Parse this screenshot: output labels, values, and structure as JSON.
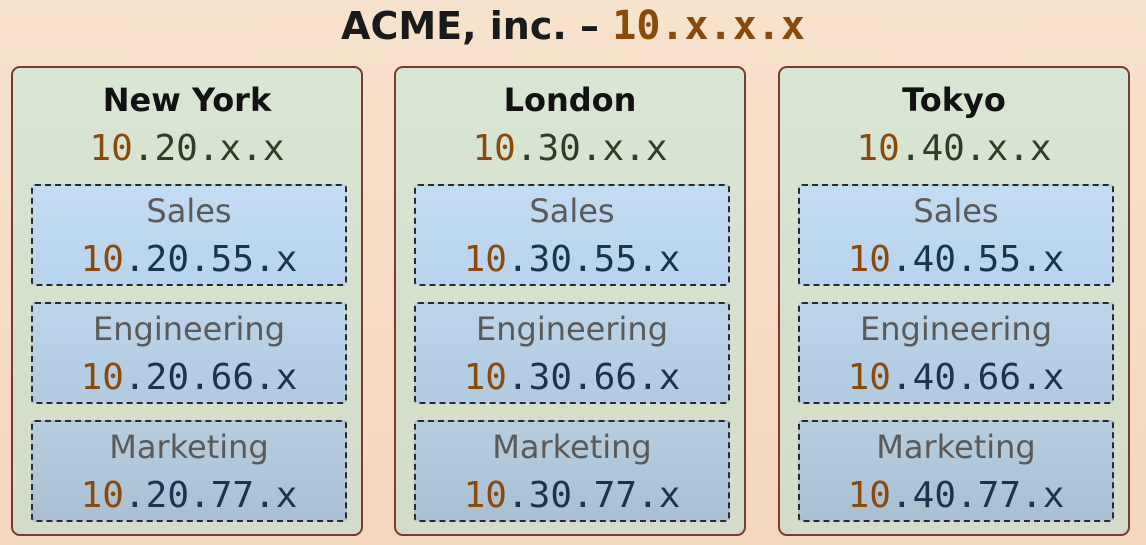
{
  "title": {
    "org": "ACME, inc. –",
    "address": "10.x.x.x"
  },
  "colors": {
    "prefix": "#8a4a0c",
    "region_border": "#7a3b2e",
    "region_fill": "#d9e6d4",
    "dept_fill": "#c3dcf2",
    "region_net_text": "#2f3d24",
    "dept_net_text": "#1c3350"
  },
  "regions": [
    {
      "name": "New York",
      "prefix": "10",
      "rest": ".20.x.x",
      "departments": [
        {
          "name": "Sales",
          "prefix": "10",
          "rest": ".20.55.x"
        },
        {
          "name": "Engineering",
          "prefix": "10",
          "rest": ".20.66.x"
        },
        {
          "name": "Marketing",
          "prefix": "10",
          "rest": ".20.77.x"
        }
      ]
    },
    {
      "name": "London",
      "prefix": "10",
      "rest": ".30.x.x",
      "departments": [
        {
          "name": "Sales",
          "prefix": "10",
          "rest": ".30.55.x"
        },
        {
          "name": "Engineering",
          "prefix": "10",
          "rest": ".30.66.x"
        },
        {
          "name": "Marketing",
          "prefix": "10",
          "rest": ".30.77.x"
        }
      ]
    },
    {
      "name": "Tokyo",
      "prefix": "10",
      "rest": ".40.x.x",
      "departments": [
        {
          "name": "Sales",
          "prefix": "10",
          "rest": ".40.55.x"
        },
        {
          "name": "Engineering",
          "prefix": "10",
          "rest": ".40.66.x"
        },
        {
          "name": "Marketing",
          "prefix": "10",
          "rest": ".40.77.x"
        }
      ]
    }
  ]
}
